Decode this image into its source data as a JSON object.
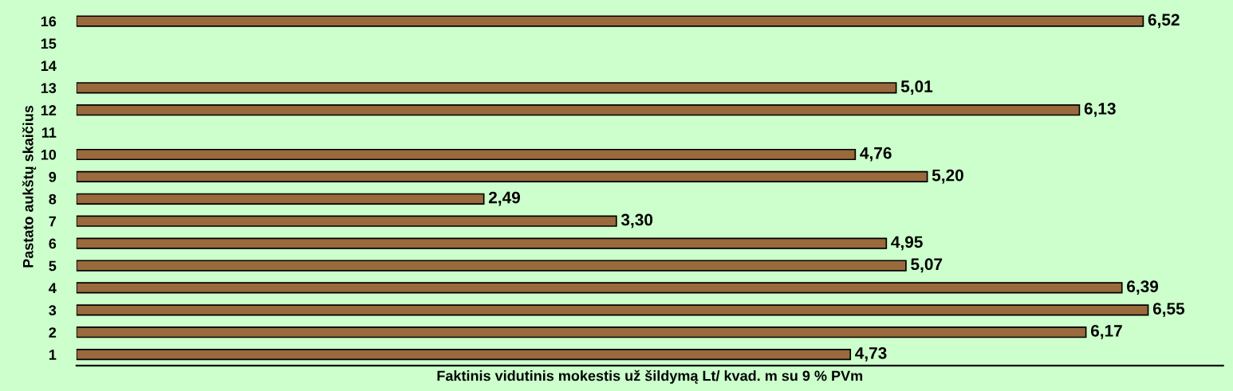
{
  "chart_data": {
    "type": "bar",
    "orientation": "horizontal",
    "xlabel": "Faktinis vidutinis mokestis už šildymą Lt/ kvad. m su 9 % PVm",
    "ylabel": "Pastato aukštų skaičius",
    "categories": [
      "16",
      "15",
      "14",
      "13",
      "12",
      "11",
      "10",
      "9",
      "8",
      "7",
      "6",
      "5",
      "4",
      "3",
      "2",
      "1"
    ],
    "values": [
      6.52,
      null,
      null,
      5.01,
      6.13,
      null,
      4.76,
      5.2,
      2.49,
      3.3,
      4.95,
      5.07,
      6.39,
      6.55,
      6.17,
      4.73
    ],
    "value_labels": [
      "6,52",
      null,
      null,
      "5,01",
      "6,13",
      null,
      "4,76",
      "5,20",
      "2,49",
      "3,30",
      "4,95",
      "5,07",
      "6,39",
      "6,55",
      "6,17",
      "4,73"
    ],
    "color": "#9a6a3c",
    "tick_labels": "y",
    "grid": false,
    "legend": false
  }
}
